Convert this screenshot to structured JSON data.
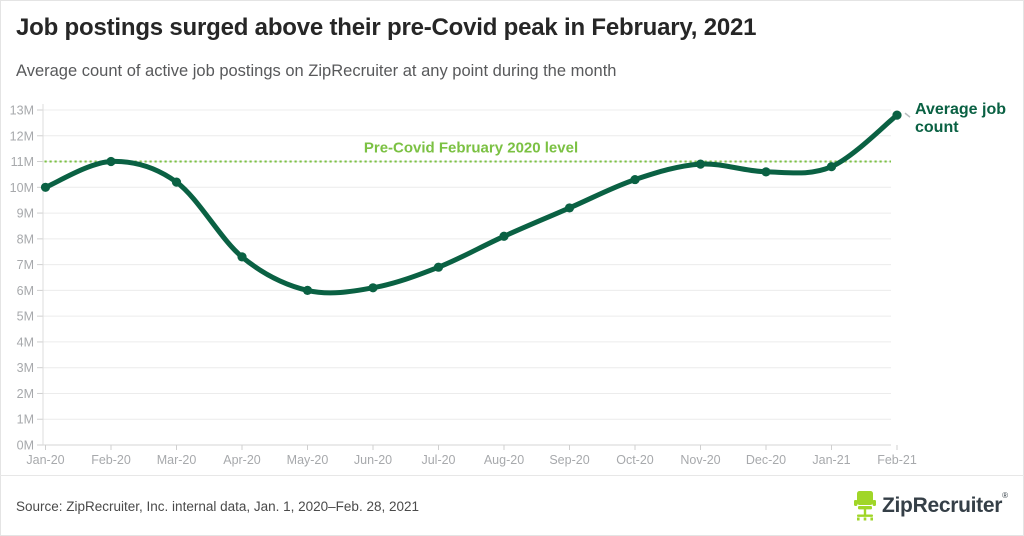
{
  "page": {
    "title": "Job postings surged above their pre-Covid peak in February, 2021",
    "subtitle": "Average count of active job postings on ZipRecruiter at any point during the month"
  },
  "chart_data": {
    "type": "line",
    "title": "Job postings surged above their pre-Covid peak in February, 2021",
    "categories": [
      "Jan-20",
      "Feb-20",
      "Mar-20",
      "Apr-20",
      "May-20",
      "Jun-20",
      "Jul-20",
      "Aug-20",
      "Sep-20",
      "Oct-20",
      "Nov-20",
      "Dec-20",
      "Jan-21",
      "Feb-21"
    ],
    "series": [
      {
        "name": "Average job count",
        "values": [
          10.0,
          11.0,
          10.2,
          7.3,
          6.0,
          6.1,
          6.9,
          8.1,
          9.2,
          10.3,
          10.9,
          10.6,
          10.8,
          12.8
        ]
      }
    ],
    "series_label_lines": [
      "Average job",
      "count"
    ],
    "reference_line": {
      "value": 11.0,
      "label": "Pre-Covid February 2020 level"
    },
    "ylim": [
      0,
      13
    ],
    "ytick_step": 1,
    "ytick_suffix": "M",
    "grid": "horizontal",
    "legend_position": "end-of-line",
    "colors": {
      "line": "#0a6143",
      "marker": "#0a6143",
      "reference": "#7bc143",
      "grid": "#ececec",
      "axis_line": "#d6d6d6",
      "tick": "#cfcfcf",
      "axis_text": "#a7a9ac"
    }
  },
  "footer": {
    "source": "Source: ZipRecruiter, Inc. internal data, Jan. 1, 2020–Feb. 28, 2021",
    "logo_text": "ZipRecruiter",
    "registered": "®"
  }
}
